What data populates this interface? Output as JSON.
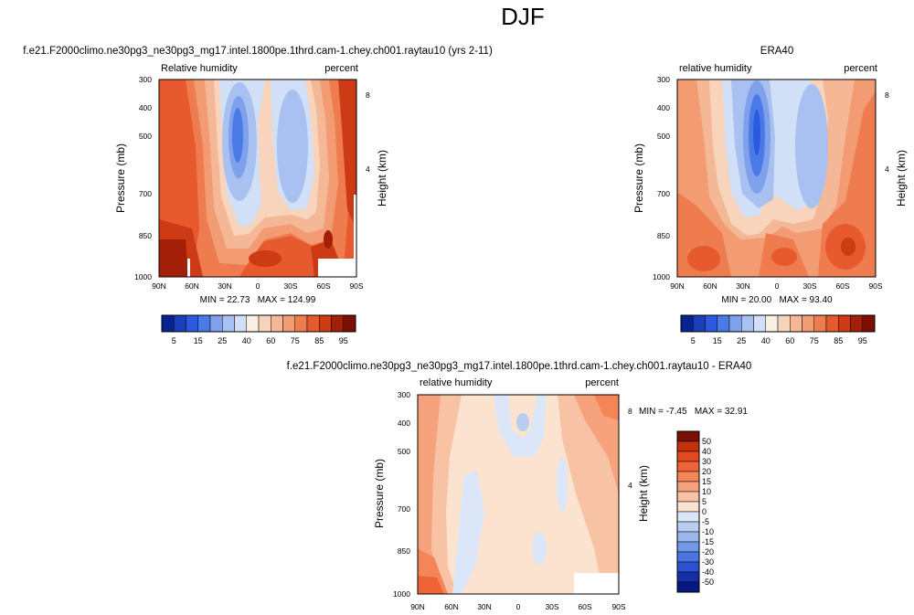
{
  "figure": {
    "title": "DJF"
  },
  "chart_data": [
    {
      "type": "heatmap",
      "id": "model",
      "title": "f.e21.F2000climo.ne30pg3_ne30pg3_mg17.intel.1800pe.1thrd.cam-1.chey.ch001.raytau10 (yrs 2-11)",
      "left_label": "Relative humidity",
      "right_label": "percent",
      "ylabel": "Pressure (mb)",
      "y2label": "Height (km)",
      "x_ticks": [
        "90N",
        "60N",
        "30N",
        "0",
        "30S",
        "60S",
        "90S"
      ],
      "y_ticks": [
        "300",
        "400",
        "500",
        "700",
        "850",
        "1000"
      ],
      "y2_ticks": [
        "8",
        "4"
      ],
      "stats": "MIN = 22.73   MAX = 124.99",
      "levels": [
        "5",
        "15",
        "25",
        "40",
        "60",
        "75",
        "85",
        "95"
      ],
      "colorbar": "horizontal"
    },
    {
      "type": "heatmap",
      "id": "obs",
      "title": "ERA40",
      "left_label": "relative humidity",
      "right_label": "percent",
      "ylabel": "Pressure (mb)",
      "y2label": "Height (km)",
      "x_ticks": [
        "90N",
        "60N",
        "30N",
        "0",
        "30S",
        "60S",
        "90S"
      ],
      "y_ticks": [
        "300",
        "400",
        "500",
        "700",
        "850",
        "1000"
      ],
      "y2_ticks": [
        "8",
        "4"
      ],
      "stats": "MIN = 20.00   MAX = 93.40",
      "levels": [
        "5",
        "15",
        "25",
        "40",
        "60",
        "75",
        "85",
        "95"
      ],
      "colorbar": "horizontal"
    },
    {
      "type": "heatmap",
      "id": "diff",
      "title": "f.e21.F2000climo.ne30pg3_ne30pg3_mg17.intel.1800pe.1thrd.cam-1.chey.ch001.raytau10 - ERA40",
      "left_label": "relative humidity",
      "right_label": "percent",
      "ylabel": "Pressure (mb)",
      "y2label": "Height (km)",
      "x_ticks": [
        "90N",
        "60N",
        "30N",
        "0",
        "30S",
        "60S",
        "90S"
      ],
      "y_ticks": [
        "300",
        "400",
        "500",
        "700",
        "850",
        "1000"
      ],
      "y2_ticks": [
        "8",
        "4"
      ],
      "stats": "MIN = -7.45   MAX = 32.91",
      "levels": [
        "50",
        "40",
        "30",
        "20",
        "15",
        "10",
        "5",
        "0",
        "-5",
        "-10",
        "-15",
        "-20",
        "-30",
        "-40",
        "-50"
      ],
      "colorbar": "vertical"
    }
  ],
  "colors": {
    "abs_palette": [
      "#08228f",
      "#1b3fb8",
      "#2c5ade",
      "#4a7ae6",
      "#7fa0ea",
      "#a9c1f0",
      "#d2e0f7",
      "#fbeee2",
      "#f8d4bd",
      "#f5b896",
      "#f39b72",
      "#ef7c4e",
      "#e65a2e",
      "#cc3b16",
      "#a31f08",
      "#7a0f03"
    ],
    "diff_palette": [
      "#7a0f03",
      "#c1330f",
      "#e4481f",
      "#ee6338",
      "#f38557",
      "#f5a27d",
      "#f8c3a4",
      "#fbe3d0",
      "#dbe7f8",
      "#b9cdf1",
      "#9db7ec",
      "#7098e6",
      "#4a74e2",
      "#2c50d2",
      "#162fa6",
      "#08177f"
    ]
  }
}
